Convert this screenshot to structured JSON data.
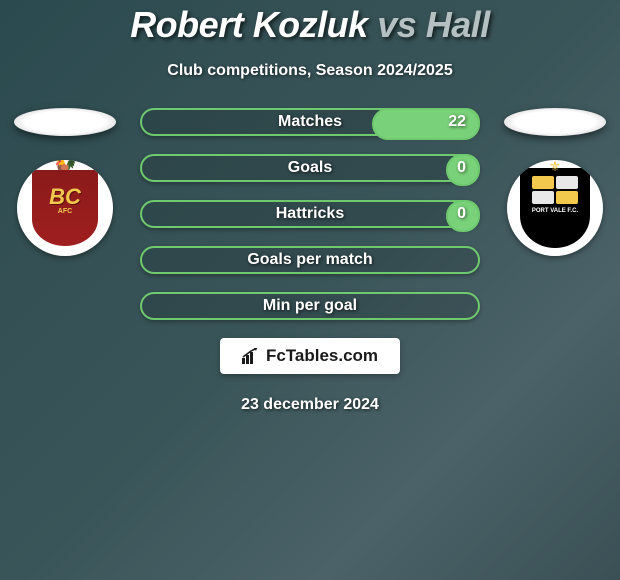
{
  "title": {
    "player_a": "Robert Kozluk",
    "vs": "vs",
    "player_b": "Hall"
  },
  "subtitle": "Club competitions, Season 2024/2025",
  "stats": [
    {
      "label": "Matches",
      "value_right": "22",
      "fill_pct_right": 31
    },
    {
      "label": "Goals",
      "value_right": "0",
      "fill_pct_right": 9
    },
    {
      "label": "Hattricks",
      "value_right": "0",
      "fill_pct_right": 9
    },
    {
      "label": "Goals per match",
      "value_right": "",
      "fill_pct_right": 0
    },
    {
      "label": "Min per goal",
      "value_right": "",
      "fill_pct_right": 0
    }
  ],
  "colors": {
    "bar_border": "#6fc96f",
    "bar_fill": "#79d279",
    "text": "#ffffff",
    "title_gray": "#b5c0c2"
  },
  "watermark": "FcTables.com",
  "date": "23 december 2024",
  "clubs": {
    "left": {
      "name": "Bradford City",
      "text_top": "BC",
      "text_bottom": "AFC"
    },
    "right": {
      "name": "Port Vale",
      "text": "PORT VALE F.C."
    }
  }
}
